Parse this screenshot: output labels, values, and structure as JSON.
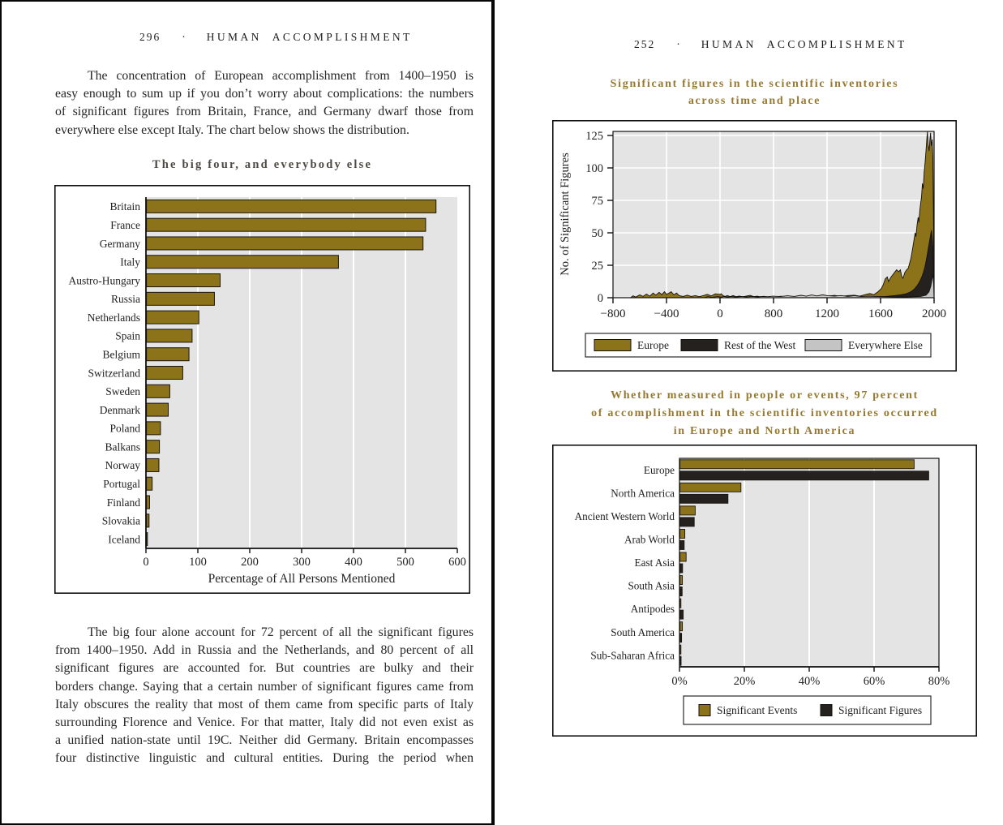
{
  "colors": {
    "gold": "#8c7219",
    "black_series": "#25211e",
    "gray_series": "#c4c4c4",
    "plot_bg": "#e4e4e5",
    "grid": "#ffffff",
    "frame": "#101010",
    "title_gold": "#96792f",
    "title_dark": "#4d4943",
    "text": "#262626"
  },
  "left_page": {
    "page_number": "296",
    "dot": "·",
    "running_head": "HUMAN ACCOMPLISHMENT",
    "para1": {
      "justify_last": false,
      "lines": [
        "The concentration of European accomplishment from 1400–1950 is",
        "easy enough to sum up if you don’t worry about complications: the numbers",
        "of significant figures from Britain, France, and Germany dwarf those from",
        "everywhere else except Italy. The chart below shows the distribution."
      ]
    },
    "para2": {
      "justify_last": true,
      "lines": [
        "The big four alone account for 72 percent of all the significant figures",
        "from 1400–1950. Add in Russia and the Netherlands, and 80 percent of all",
        "significant figures are accounted for. But countries are bulky and their",
        "borders change. Saying that a certain number of significant figures came from",
        "Italy obscures the reality that most of them came from specific parts of Italy",
        "surrounding Florence and Venice. For that matter, Italy did not even exist as",
        "a unified nation-state until 19C. Neither did Germany. Britain encompasses",
        "four distinctive linguistic and cultural entities. During the period when"
      ]
    }
  },
  "right_page": {
    "page_number": "252",
    "dot": "·",
    "running_head": "HUMAN ACCOMPLISHMENT",
    "title1_lines": [
      "Significant figures in the scientific inventories",
      "across time and place"
    ],
    "title2_lines": [
      "Whether measured in people or events, 97 percent",
      "of accomplishment in the scientific inventories occurred",
      "in Europe and North America"
    ]
  },
  "chart_data": [
    {
      "id": "big-four",
      "type": "bar",
      "orientation": "horizontal",
      "title": "The big four, and everybody else",
      "categories": [
        "Britain",
        "France",
        "Germany",
        "Italy",
        "Austro-Hungary",
        "Russia",
        "Netherlands",
        "Spain",
        "Belgium",
        "Switzerland",
        "Sweden",
        "Denmark",
        "Poland",
        "Balkans",
        "Norway",
        "Portugal",
        "Finland",
        "Slovakia",
        "Iceland"
      ],
      "values": [
        558,
        538,
        533,
        370,
        142,
        131,
        101,
        88,
        82,
        70,
        45,
        42,
        27,
        25,
        24,
        11,
        6,
        5,
        1.5
      ],
      "xlabel": "Percentage of All Persons Mentioned",
      "xticks": [
        0,
        100,
        200,
        300,
        400,
        500,
        600
      ],
      "xtick_labels": [
        "0",
        "100",
        "200",
        "300",
        "400",
        "500",
        "600"
      ],
      "xlim": [
        0,
        600
      ],
      "grid": true,
      "bar_color": "#8c7219"
    },
    {
      "id": "sig-figures-across-time",
      "type": "area",
      "title": "Significant figures in the scientific inventories across time and place",
      "ylabel": "No. of Significant Figures",
      "yticks": [
        0,
        25,
        50,
        75,
        100,
        125
      ],
      "ylim": [
        0,
        125
      ],
      "xtick_labels": [
        "−800",
        "−400",
        "0",
        "800",
        "1200",
        "1600",
        "2000"
      ],
      "xtick_values": [
        -800,
        -400,
        0,
        800,
        1200,
        1600,
        2000
      ],
      "grid": true,
      "legend_position": "bottom",
      "series": [
        {
          "name": "Europe",
          "color": "#8c7219",
          "points": [
            [
              -800,
              0
            ],
            [
              -670,
              0
            ],
            [
              -650,
              1.5
            ],
            [
              -630,
              0.5
            ],
            [
              -600,
              2.2
            ],
            [
              -575,
              1
            ],
            [
              -550,
              2.8
            ],
            [
              -525,
              1.2
            ],
            [
              -500,
              3.6
            ],
            [
              -480,
              2
            ],
            [
              -455,
              4.2
            ],
            [
              -435,
              2.4
            ],
            [
              -415,
              4.6
            ],
            [
              -400,
              2.6
            ],
            [
              -385,
              3.4
            ],
            [
              -365,
              4.6
            ],
            [
              -345,
              2.2
            ],
            [
              -325,
              3.6
            ],
            [
              -305,
              1.6
            ],
            [
              -275,
              1
            ],
            [
              -245,
              2
            ],
            [
              -215,
              1
            ],
            [
              -185,
              1.6
            ],
            [
              -155,
              0.8
            ],
            [
              -125,
              1.6
            ],
            [
              -95,
              2.6
            ],
            [
              -65,
              1.4
            ],
            [
              -35,
              3
            ],
            [
              -5,
              2.6
            ],
            [
              20,
              3
            ],
            [
              45,
              1.6
            ],
            [
              75,
              1
            ],
            [
              110,
              1.6
            ],
            [
              150,
              0.8
            ],
            [
              195,
              1.6
            ],
            [
              240,
              0.8
            ],
            [
              290,
              1.3
            ],
            [
              340,
              0.7
            ],
            [
              395,
              1.3
            ],
            [
              450,
              1.8
            ],
            [
              505,
              0.8
            ],
            [
              555,
              1.2
            ],
            [
              605,
              0.6
            ],
            [
              655,
              1.1
            ],
            [
              705,
              0.5
            ],
            [
              755,
              1
            ],
            [
              805,
              0.7
            ],
            [
              855,
              1.1
            ],
            [
              905,
              0.6
            ],
            [
              955,
              1
            ],
            [
              1005,
              1.2
            ],
            [
              1055,
              0.7
            ],
            [
              1105,
              1.4
            ],
            [
              1155,
              0.8
            ],
            [
              1205,
              1.2
            ],
            [
              1255,
              1.8
            ],
            [
              1305,
              1
            ],
            [
              1355,
              1.7
            ],
            [
              1405,
              1.9
            ],
            [
              1445,
              1.2
            ],
            [
              1485,
              2.4
            ],
            [
              1520,
              3.2
            ],
            [
              1550,
              2.3
            ],
            [
              1580,
              4.5
            ],
            [
              1605,
              7
            ],
            [
              1620,
              10
            ],
            [
              1635,
              14.5
            ],
            [
              1650,
              16
            ],
            [
              1660,
              12.5
            ],
            [
              1675,
              15.5
            ],
            [
              1690,
              17.5
            ],
            [
              1705,
              19.5
            ],
            [
              1720,
              21.5
            ],
            [
              1735,
              20
            ],
            [
              1748,
              21.5
            ],
            [
              1758,
              16.5
            ],
            [
              1768,
              15
            ],
            [
              1782,
              19.5
            ],
            [
              1795,
              21.5
            ],
            [
              1806,
              22.5
            ],
            [
              1816,
              26
            ],
            [
              1826,
              30
            ],
            [
              1836,
              35.5
            ],
            [
              1846,
              42
            ],
            [
              1852,
              46
            ],
            [
              1859,
              50
            ],
            [
              1864,
              47
            ],
            [
              1873,
              56
            ],
            [
              1881,
              62
            ],
            [
              1886,
              58
            ],
            [
              1894,
              68
            ],
            [
              1901,
              74
            ],
            [
              1906,
              77.5
            ],
            [
              1913,
              88
            ],
            [
              1919,
              84
            ],
            [
              1926,
              97
            ],
            [
              1933,
              104
            ],
            [
              1939,
              112
            ],
            [
              1945,
              121
            ],
            [
              1950,
              128
            ],
            [
              1956,
              118
            ],
            [
              1963,
              113
            ],
            [
              1969,
              122
            ],
            [
              1974,
              127
            ],
            [
              1979,
              117
            ],
            [
              1986,
              122
            ],
            [
              1991,
              108
            ],
            [
              1995,
              66
            ],
            [
              1998,
              28
            ],
            [
              2000,
              0
            ]
          ]
        },
        {
          "name": "Rest of the West",
          "color": "#25211e",
          "points": [
            [
              -800,
              0
            ],
            [
              1450,
              0
            ],
            [
              1520,
              0.4
            ],
            [
              1580,
              0.7
            ],
            [
              1640,
              1
            ],
            [
              1700,
              1.6
            ],
            [
              1750,
              2.2
            ],
            [
              1790,
              3
            ],
            [
              1815,
              4
            ],
            [
              1835,
              5.2
            ],
            [
              1855,
              7
            ],
            [
              1875,
              9.5
            ],
            [
              1890,
              12
            ],
            [
              1902,
              14.5
            ],
            [
              1912,
              17
            ],
            [
              1922,
              20
            ],
            [
              1932,
              24
            ],
            [
              1942,
              29
            ],
            [
              1952,
              35
            ],
            [
              1962,
              41
            ],
            [
              1972,
              47
            ],
            [
              1980,
              52
            ],
            [
              1986,
              47
            ],
            [
              1991,
              39
            ],
            [
              1995,
              24
            ],
            [
              1998,
              10
            ],
            [
              2000,
              0
            ]
          ]
        },
        {
          "name": "Everywhere Else",
          "color": "#c4c4c4",
          "points": [
            [
              -800,
              0
            ],
            [
              -120,
              0
            ],
            [
              -90,
              0.9
            ],
            [
              -60,
              0.4
            ],
            [
              -20,
              0.9
            ],
            [
              20,
              0.5
            ],
            [
              60,
              1
            ],
            [
              110,
              0.5
            ],
            [
              170,
              0.9
            ],
            [
              240,
              0.5
            ],
            [
              320,
              1
            ],
            [
              400,
              0.6
            ],
            [
              480,
              1
            ],
            [
              560,
              0.6
            ],
            [
              640,
              1
            ],
            [
              720,
              0.8
            ],
            [
              790,
              1.2
            ],
            [
              850,
              0.9
            ],
            [
              905,
              1.5
            ],
            [
              955,
              1
            ],
            [
              1005,
              1.9
            ],
            [
              1045,
              1.2
            ],
            [
              1085,
              2.1
            ],
            [
              1125,
              1.4
            ],
            [
              1165,
              2.2
            ],
            [
              1205,
              1.6
            ],
            [
              1255,
              1.2
            ],
            [
              1305,
              1.7
            ],
            [
              1355,
              1
            ],
            [
              1405,
              1.5
            ],
            [
              1455,
              0.9
            ],
            [
              1510,
              1.1
            ],
            [
              1600,
              0.8
            ],
            [
              1700,
              0.6
            ],
            [
              1800,
              0.6
            ],
            [
              1900,
              1
            ],
            [
              1940,
              2
            ],
            [
              1962,
              4.5
            ],
            [
              1976,
              9
            ],
            [
              1986,
              15
            ],
            [
              1992,
              18
            ],
            [
              1997,
              10
            ],
            [
              2000,
              0
            ]
          ]
        }
      ]
    },
    {
      "id": "people-or-events",
      "type": "grouped-bar",
      "orientation": "horizontal",
      "title": "Whether measured in people or events, 97 percent of accomplishment in the scientific inventories occurred in Europe and North America",
      "categories": [
        "Europe",
        "North America",
        "Ancient Western World",
        "Arab World",
        "East Asia",
        "South Asia",
        "Antipodes",
        "South America",
        "Sub-Saharan Africa"
      ],
      "series": [
        {
          "name": "Significant Events",
          "color": "#8c7219",
          "values": [
            72.2,
            18.8,
            4.7,
            1.5,
            1.9,
            0.75,
            0.3,
            0.75,
            0.2
          ]
        },
        {
          "name": "Significant Figures",
          "color": "#25211e",
          "values": [
            76.7,
            14.8,
            4.4,
            1.3,
            0.8,
            0.67,
            1.0,
            0.5,
            0.35
          ]
        }
      ],
      "xtick_labels": [
        "0%",
        "20%",
        "40%",
        "60%",
        "80%"
      ],
      "xtick_values": [
        0,
        20,
        40,
        60,
        80
      ],
      "xlim": [
        0,
        80
      ],
      "grid": true,
      "legend_position": "bottom"
    }
  ]
}
